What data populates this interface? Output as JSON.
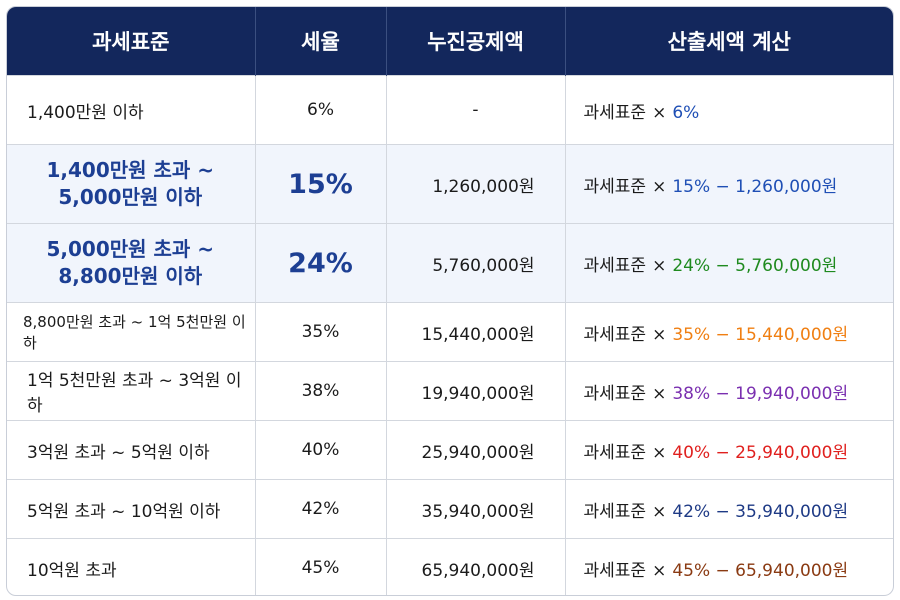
{
  "header": {
    "col1": "과세표준",
    "col2": "세율",
    "col3": "누진공제액",
    "col4": "산출세액 계산"
  },
  "calc_base": "과세표준",
  "calc_times": "×",
  "rows": [
    {
      "range": "1,400만원 이하",
      "rate": "6%",
      "deduction": "-",
      "calc_expr": "6%",
      "calc_color": "#1f4fb5"
    },
    {
      "range_line1": "1,400만원 초과 ~",
      "range_line2": "5,000만원 이하",
      "rate": "15%",
      "deduction": "1,260,000원",
      "calc_expr": "15% − 1,260,000원",
      "calc_color": "#1f4fb5"
    },
    {
      "range_line1": "5,000만원 초과 ~",
      "range_line2": "8,800만원 이하",
      "rate": "24%",
      "deduction": "5,760,000원",
      "calc_expr": "24% − 5,760,000원",
      "calc_color": "#1f8a1f"
    },
    {
      "range": "8,800만원 초과 ~ 1억 5천만원 이하",
      "rate": "35%",
      "deduction": "15,440,000원",
      "calc_expr": "35% − 15,440,000원",
      "calc_color": "#f07f12"
    },
    {
      "range": "1억 5천만원 초과 ~ 3억원 이하",
      "rate": "38%",
      "deduction": "19,940,000원",
      "calc_expr": "38% − 19,940,000원",
      "calc_color": "#7a2fb0"
    },
    {
      "range": "3억원 초과 ~ 5억원 이하",
      "rate": "40%",
      "deduction": "25,940,000원",
      "calc_expr": "40% − 25,940,000원",
      "calc_color": "#e0201e"
    },
    {
      "range": "5억원 초과 ~ 10억원 이하",
      "rate": "42%",
      "deduction": "35,940,000원",
      "calc_expr": "42% − 35,940,000원",
      "calc_color": "#1e3a85"
    },
    {
      "range": "10억원 초과",
      "rate": "45%",
      "deduction": "65,940,000원",
      "calc_expr": "45% − 65,940,000원",
      "calc_color": "#8a3a12"
    }
  ]
}
